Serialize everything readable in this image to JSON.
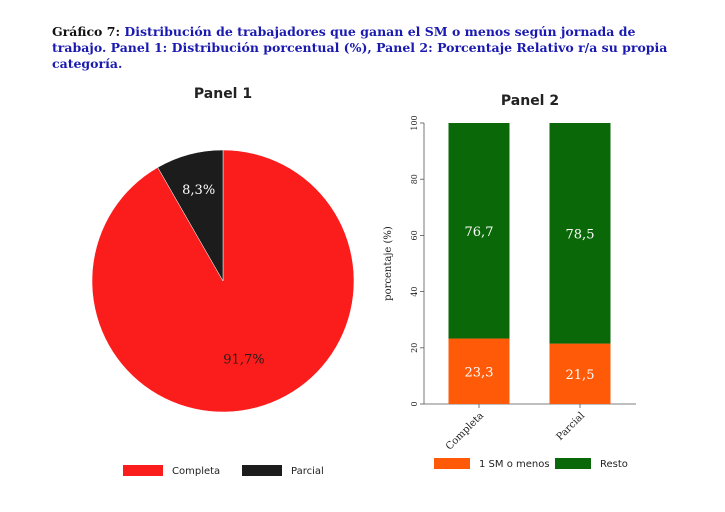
{
  "caption": {
    "lead": "Gráfico 7:",
    "text": "Distribución de trabajadores que ganan el SM o menos según jornada de trabajo. Panel 1: Distribución porcentual (%), Panel 2: Porcentaje Relativo r/a su propia categoría."
  },
  "colors": {
    "completa": "#fb1c1c",
    "parcial": "#1c1c1c",
    "sm": "#fe5a08",
    "resto": "#0a6808"
  },
  "chart_data": [
    {
      "type": "pie",
      "title": "Panel 1",
      "slices": [
        {
          "label": "Completa",
          "value": 91.7,
          "display": "91,7%"
        },
        {
          "label": "Parcial",
          "value": 8.3,
          "display": "8,3%"
        }
      ],
      "legend": [
        "Completa",
        "Parcial"
      ],
      "legend_position": "bottom"
    },
    {
      "type": "bar",
      "stacked": true,
      "title": "Panel 2",
      "ylabel": "porcentaje (%)",
      "ylim": [
        0,
        100
      ],
      "yticks": [
        "0",
        "20",
        "40",
        "60",
        "80",
        "100"
      ],
      "categories": [
        "Completa",
        "Parcial"
      ],
      "series": [
        {
          "name": "1 SM o menos",
          "values": [
            23.3,
            21.5
          ],
          "labels": [
            "23,3",
            "21,5"
          ]
        },
        {
          "name": "Resto",
          "values": [
            76.7,
            78.5
          ],
          "labels": [
            "76,7",
            "78,5"
          ]
        }
      ],
      "legend_position": "bottom"
    }
  ]
}
